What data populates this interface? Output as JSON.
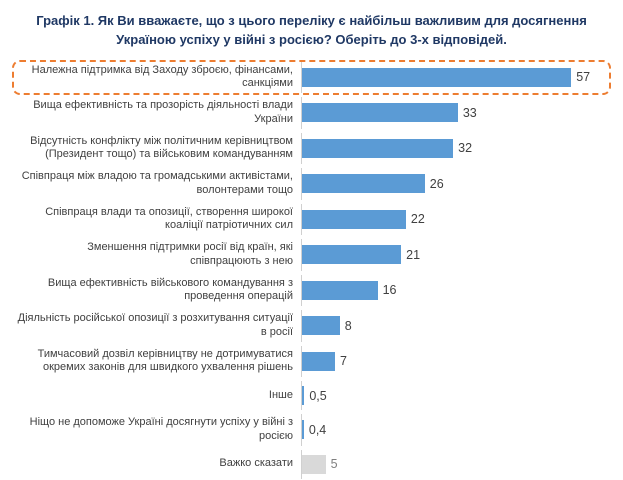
{
  "colors": {
    "bar": "#5B9BD5",
    "bar_muted": "#D9D9D9",
    "highlight_border": "#ED7D31",
    "title_text": "#1F3864",
    "axis_line": "#D0D0D0",
    "label_text": "#404040",
    "muted_value_text": "#7F7F7F"
  },
  "chart_data": {
    "type": "bar",
    "orientation": "horizontal",
    "title": "Графік 1. Як Ви вважаєте, що з цього переліку є найбільш важливим для досягнення Україною успіху у війні з росією? Оберіть до 3-х відповідей.",
    "xlabel": "",
    "ylabel": "",
    "xlim": [
      0,
      65
    ],
    "grid": false,
    "legend": false,
    "highlighted_index": 0,
    "categories": [
      "Належна підтримка від Заходу зброєю, фінансами, санкціями",
      "Вища ефективність та прозорість діяльності влади України",
      "Відсутність конфлікту між політичним керівництвом (Президент тощо) та військовим командуванням",
      "Співпраця між владою та громадськими активістами, волонтерами тощо",
      "Співпраця влади та опозиції, створення широкої коаліції патріотичних сил",
      "Зменшення підтримки росії від країн, які співпрацюють з нею",
      "Вища ефективність військового командування з проведення операцій",
      "Діяльність російської опозиції з розхитування ситуації в росії",
      "Тимчасовий дозвіл керівництву не дотримуватися окремих законів для швидкого ухвалення рішень",
      "Інше",
      "Ніщо не допоможе Україні досягнути успіху у війні з росією",
      "Важко сказати"
    ],
    "values": [
      57,
      33,
      32,
      26,
      22,
      21,
      16,
      8,
      7,
      0.5,
      0.4,
      5
    ],
    "value_labels": [
      "57",
      "33",
      "32",
      "26",
      "22",
      "21",
      "16",
      "8",
      "7",
      "0,5",
      "0,4",
      "5"
    ],
    "bar_colors": [
      "#5B9BD5",
      "#5B9BD5",
      "#5B9BD5",
      "#5B9BD5",
      "#5B9BD5",
      "#5B9BD5",
      "#5B9BD5",
      "#5B9BD5",
      "#5B9BD5",
      "#5B9BD5",
      "#5B9BD5",
      "#D9D9D9"
    ],
    "value_colors": [
      "#404040",
      "#404040",
      "#404040",
      "#404040",
      "#404040",
      "#404040",
      "#404040",
      "#404040",
      "#404040",
      "#404040",
      "#404040",
      "#7F7F7F"
    ]
  }
}
